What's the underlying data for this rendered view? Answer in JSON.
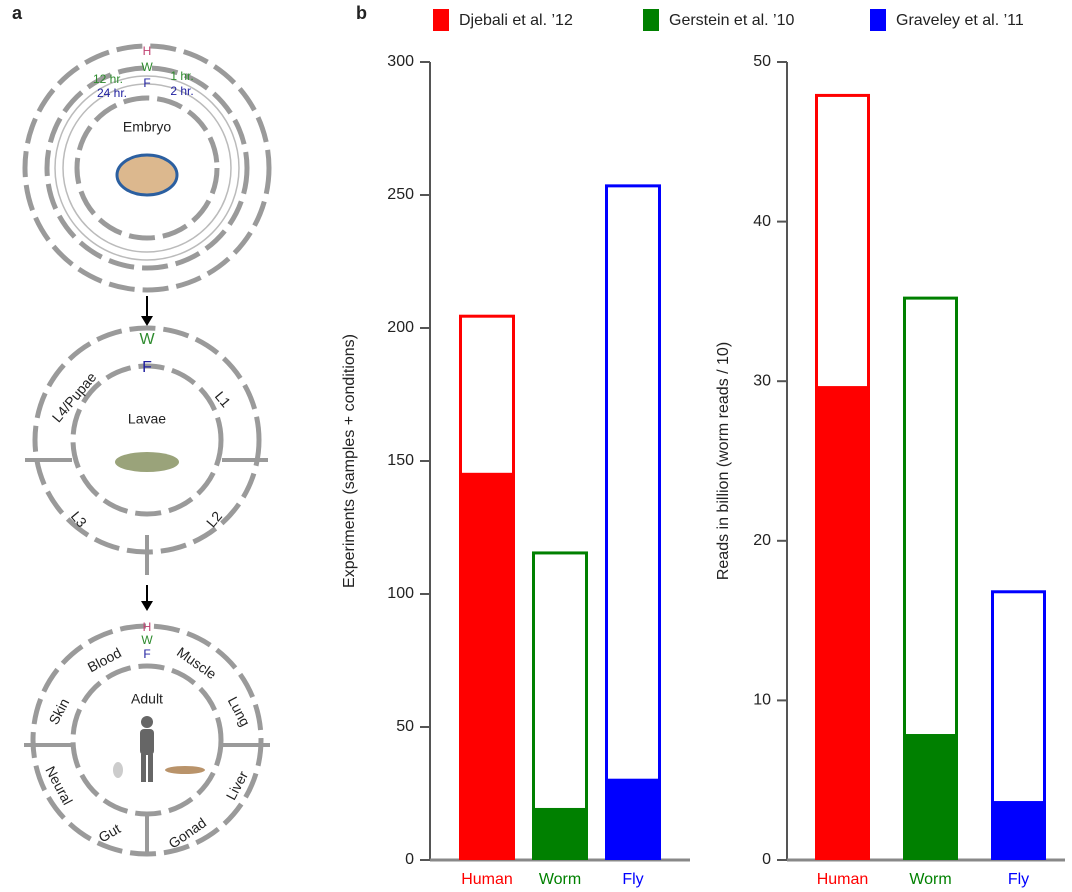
{
  "panel_a": {
    "label": "a",
    "embryo": {
      "title": "Embryo",
      "h": "H",
      "w": "W",
      "f": "F",
      "w_late": "12 hr.",
      "f_late": "24 hr.",
      "w_early": "1 hr.",
      "f_early": "2 hr."
    },
    "larvae": {
      "title": "Lavae",
      "w": "W",
      "f": "F",
      "stages": [
        "L4/Pupae",
        "L1",
        "L3",
        "L2"
      ]
    },
    "adult": {
      "title": "Adult",
      "h": "H",
      "w": "W",
      "f": "F",
      "tissues": [
        "Blood",
        "Muscle",
        "Skin",
        "Lung",
        "Neural",
        "Liver",
        "Gut",
        "Gonad"
      ]
    }
  },
  "chart_data": [
    {
      "type": "stacked_bar",
      "panel_label": "b",
      "legend": [
        "Djebali et al. ’12",
        "Gerstein et al. ’10",
        "Graveley et al. ’11"
      ],
      "categories": [
        "Human",
        "Worm",
        "Fly"
      ],
      "colors": [
        "#ff0000",
        "#008000",
        "#0000ff"
      ],
      "y_label": "Experiments (samples + conditions)",
      "series": [
        {
          "fill": true,
          "values": [
            145,
            19,
            30
          ]
        },
        {
          "fill": false,
          "values": [
            60,
            97,
            224
          ]
        }
      ],
      "ylim": [
        0,
        300
      ],
      "yticks": [
        0,
        50,
        100,
        150,
        200,
        250,
        300
      ]
    },
    {
      "type": "stacked_bar",
      "categories": [
        "Human",
        "Worm",
        "Fly"
      ],
      "colors": [
        "#ff0000",
        "#008000",
        "#0000ff"
      ],
      "y_label": "Reads in billion (worm reads / 10)",
      "series": [
        {
          "fill": true,
          "values": [
            29.6,
            7.8,
            3.6
          ]
        },
        {
          "fill": false,
          "values": [
            18.4,
            27.5,
            13.3
          ]
        }
      ],
      "ylim": [
        0,
        50
      ],
      "yticks": [
        0,
        10,
        20,
        30,
        40,
        50
      ]
    }
  ]
}
